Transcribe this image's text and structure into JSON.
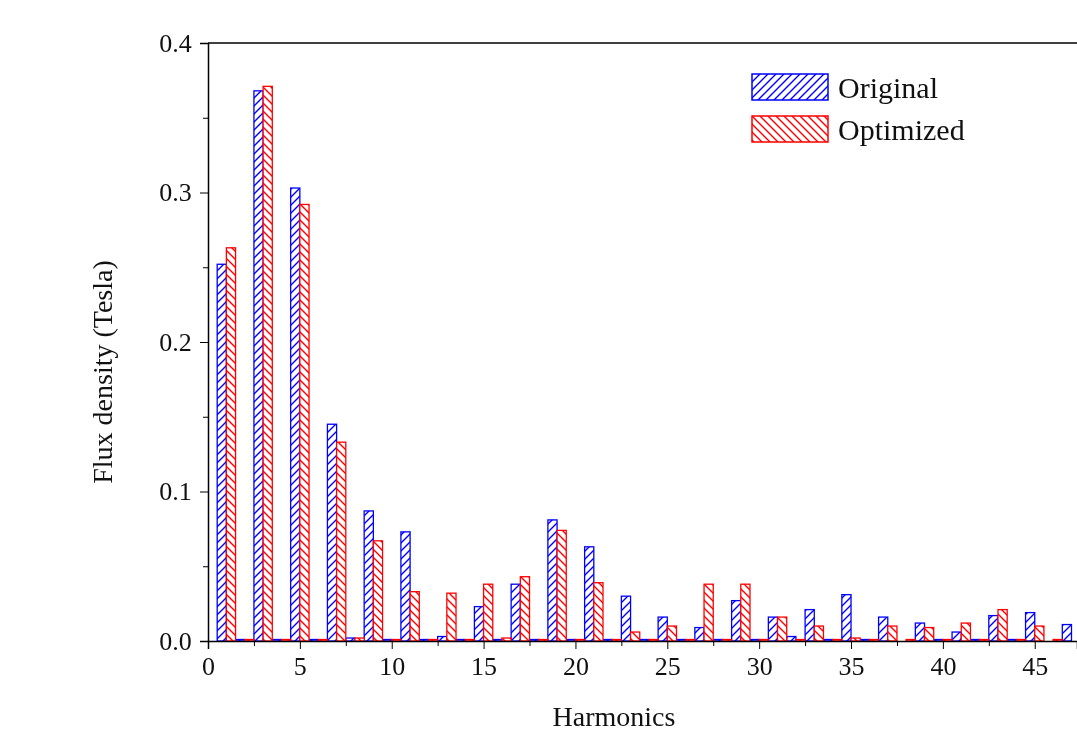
{
  "chart_data": {
    "type": "bar",
    "xlabel": "Harmonics",
    "ylabel": "Flux density (Tesla)",
    "x": [
      1,
      2,
      3,
      4,
      5,
      6,
      7,
      8,
      9,
      10,
      11,
      12,
      13,
      14,
      15,
      16,
      17,
      18,
      19,
      20,
      21,
      22,
      23,
      24,
      25,
      26,
      27,
      28,
      29,
      30,
      31,
      32,
      33,
      34,
      35,
      36,
      37,
      38,
      39,
      40,
      41,
      42,
      43,
      44,
      45,
      46,
      47
    ],
    "series": [
      {
        "name": "Original",
        "color": "#0000ff",
        "values": [
          0.252,
          0.001,
          0.368,
          0.001,
          0.303,
          0.001,
          0.145,
          0.002,
          0.087,
          0.001,
          0.073,
          0.001,
          0.003,
          0.001,
          0.023,
          0.001,
          0.038,
          0.001,
          0.081,
          0.001,
          0.063,
          0.001,
          0.03,
          0.001,
          0.016,
          0.001,
          0.009,
          0.001,
          0.027,
          0.001,
          0.016,
          0.003,
          0.021,
          0.001,
          0.031,
          0.001,
          0.016,
          null,
          0.012,
          0.001,
          0.006,
          0.001,
          0.017,
          0.001,
          0.019,
          null,
          0.011
        ]
      },
      {
        "name": "Optimized",
        "color": "#ff0000",
        "values": [
          0.263,
          0.001,
          0.371,
          0.001,
          0.292,
          0.001,
          0.133,
          0.002,
          0.067,
          0.001,
          0.033,
          0.001,
          0.032,
          0.001,
          0.038,
          0.002,
          0.043,
          0.001,
          0.074,
          0.001,
          0.039,
          0.001,
          0.006,
          0.001,
          0.01,
          0.001,
          0.038,
          0.001,
          0.038,
          0.001,
          0.016,
          0.001,
          0.01,
          0.001,
          0.002,
          0.001,
          0.01,
          0.001,
          0.009,
          0.001,
          0.012,
          0.001,
          0.021,
          0.001,
          0.01,
          0.001,
          null
        ]
      }
    ],
    "xlim": [
      0,
      47.3
    ],
    "xticks": [
      0,
      {
        "value": 2.5,
        "label": null
      },
      5,
      {
        "value": 7.5,
        "label": null
      },
      10,
      {
        "value": 12.5,
        "label": null
      },
      15,
      {
        "value": 17.5,
        "label": null
      },
      20,
      {
        "value": 22.5,
        "label": null
      },
      25,
      {
        "value": 27.5,
        "label": null
      },
      30,
      {
        "value": 32.5,
        "label": null
      },
      35,
      {
        "value": 37.5,
        "label": null
      },
      40,
      {
        "value": 42.5,
        "label": null
      },
      45
    ],
    "ylim": [
      0,
      0.4
    ],
    "yticks": [
      {
        "value": 0,
        "label": "0.0"
      },
      {
        "value": 0.05,
        "label": null
      },
      {
        "value": 0.1,
        "label": "0.1"
      },
      {
        "value": 0.15,
        "label": null
      },
      {
        "value": 0.2,
        "label": "0.2"
      },
      {
        "value": 0.25,
        "label": null
      },
      {
        "value": 0.3,
        "label": "0.3"
      },
      {
        "value": 0.35,
        "label": null
      },
      {
        "value": 0.4,
        "label": "0.4"
      }
    ],
    "legend": "top right"
  }
}
